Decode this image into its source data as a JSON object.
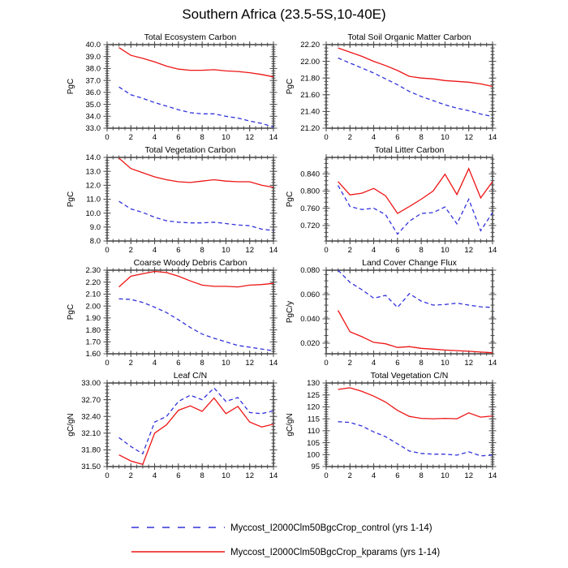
{
  "page": {
    "title": "Southern Africa (23.5-5S,10-40E)"
  },
  "colors": {
    "control": "#3232dc",
    "kparams": "#ee1414",
    "frame": "#4d4d4d"
  },
  "legend": {
    "items": [
      {
        "name": "control",
        "label": "Myccost_I2000Clm50BgcCrop_control (yrs 1-14)",
        "color": "#3232dc",
        "style": "dashed"
      },
      {
        "name": "kparams",
        "label": "Myccost_I2000Clm50BgcCrop_kparams (yrs 1-14)",
        "color": "#ee1414",
        "style": "solid"
      }
    ]
  },
  "chart_data": [
    {
      "type": "line",
      "title": "Total Ecosystem Carbon",
      "ylabel": "PgC",
      "x": [
        1,
        2,
        3,
        4,
        5,
        6,
        7,
        8,
        9,
        10,
        11,
        12,
        13,
        14
      ],
      "xlim": [
        0,
        14
      ],
      "xticks": [
        0,
        2,
        4,
        6,
        8,
        10,
        12,
        14
      ],
      "x_minor_step": 0.5,
      "ylim": [
        33.0,
        40.0
      ],
      "ytick_vals": [
        33,
        34,
        35,
        36,
        37,
        38,
        39,
        40
      ],
      "ytick_labels": [
        "33.0",
        "34.0",
        "35.0",
        "36.0",
        "37.0",
        "38.0",
        "39.0",
        "40.0"
      ],
      "y_minor_step": 0.2,
      "series": [
        {
          "name": "control",
          "dashed": true,
          "values": [
            36.45,
            35.8,
            35.5,
            35.15,
            34.85,
            34.55,
            34.3,
            34.2,
            34.2,
            34.0,
            33.85,
            33.6,
            33.4,
            33.1
          ]
        },
        {
          "name": "kparams",
          "dashed": false,
          "values": [
            39.75,
            39.1,
            38.85,
            38.55,
            38.2,
            37.95,
            37.85,
            37.85,
            37.9,
            37.8,
            37.75,
            37.65,
            37.5,
            37.3
          ]
        }
      ]
    },
    {
      "type": "line",
      "title": "Total Soil Organic Matter Carbon",
      "ylabel": "PgC",
      "x": [
        1,
        2,
        3,
        4,
        5,
        6,
        7,
        8,
        9,
        10,
        11,
        12,
        13,
        14
      ],
      "xlim": [
        0,
        14
      ],
      "xticks": [
        0,
        2,
        4,
        6,
        8,
        10,
        12,
        14
      ],
      "x_minor_step": 0.5,
      "ylim": [
        21.2,
        22.2
      ],
      "ytick_vals": [
        21.2,
        21.4,
        21.6,
        21.8,
        22.0,
        22.2
      ],
      "ytick_labels": [
        "21.20",
        "21.40",
        "21.60",
        "21.80",
        "22.00",
        "22.20"
      ],
      "y_minor_step": 0.04,
      "series": [
        {
          "name": "control",
          "dashed": true,
          "values": [
            22.04,
            21.98,
            21.92,
            21.86,
            21.79,
            21.72,
            21.64,
            21.58,
            21.53,
            21.48,
            21.44,
            21.41,
            21.37,
            21.34
          ]
        },
        {
          "name": "kparams",
          "dashed": false,
          "values": [
            22.16,
            22.11,
            22.06,
            22.0,
            21.95,
            21.89,
            21.82,
            21.8,
            21.79,
            21.77,
            21.76,
            21.75,
            21.73,
            21.7
          ]
        }
      ]
    },
    {
      "type": "line",
      "title": "Total Vegetation Carbon",
      "ylabel": "PgC",
      "x": [
        1,
        2,
        3,
        4,
        5,
        6,
        7,
        8,
        9,
        10,
        11,
        12,
        13,
        14
      ],
      "xlim": [
        0,
        14
      ],
      "xticks": [
        0,
        2,
        4,
        6,
        8,
        10,
        12,
        14
      ],
      "x_minor_step": 0.5,
      "ylim": [
        8.0,
        14.0
      ],
      "ytick_vals": [
        8,
        9,
        10,
        11,
        12,
        13,
        14
      ],
      "ytick_labels": [
        "8.0",
        "9.0",
        "10.0",
        "11.0",
        "12.0",
        "13.0",
        "14.0"
      ],
      "y_minor_step": 0.2,
      "series": [
        {
          "name": "control",
          "dashed": true,
          "values": [
            10.85,
            10.3,
            10.05,
            9.7,
            9.45,
            9.35,
            9.3,
            9.3,
            9.35,
            9.25,
            9.15,
            9.1,
            8.85,
            8.75
          ]
        },
        {
          "name": "kparams",
          "dashed": false,
          "values": [
            13.95,
            13.2,
            12.9,
            12.6,
            12.4,
            12.25,
            12.2,
            12.3,
            12.4,
            12.3,
            12.25,
            12.25,
            12.0,
            11.85
          ]
        }
      ]
    },
    {
      "type": "line",
      "title": "Total Litter Carbon",
      "ylabel": "PgC",
      "x": [
        1,
        2,
        3,
        4,
        5,
        6,
        7,
        8,
        9,
        10,
        11,
        12,
        13,
        14
      ],
      "xlim": [
        0,
        14
      ],
      "xticks": [
        0,
        2,
        4,
        6,
        8,
        10,
        12,
        14
      ],
      "x_minor_step": 0.5,
      "ylim": [
        0.684,
        0.878
      ],
      "ytick_vals": [
        0.72,
        0.76,
        0.8,
        0.84
      ],
      "ytick_labels": [
        "0.720",
        "0.760",
        "0.800",
        "0.840"
      ],
      "y_minor_step": 0.01,
      "series": [
        {
          "name": "control",
          "dashed": true,
          "values": [
            0.813,
            0.764,
            0.757,
            0.76,
            0.745,
            0.7,
            0.73,
            0.748,
            0.75,
            0.763,
            0.724,
            0.781,
            0.708,
            0.75
          ]
        },
        {
          "name": "kparams",
          "dashed": false,
          "values": [
            0.822,
            0.791,
            0.795,
            0.806,
            0.789,
            0.748,
            0.764,
            0.781,
            0.8,
            0.839,
            0.792,
            0.852,
            0.784,
            0.822
          ]
        }
      ]
    },
    {
      "type": "line",
      "title": "Coarse Woody Debris Carbon",
      "ylabel": "PgC",
      "x": [
        1,
        2,
        3,
        4,
        5,
        6,
        7,
        8,
        9,
        10,
        11,
        12,
        13,
        14
      ],
      "xlim": [
        0,
        14
      ],
      "xticks": [
        0,
        2,
        4,
        6,
        8,
        10,
        12,
        14
      ],
      "x_minor_step": 0.5,
      "ylim": [
        1.6,
        2.3
      ],
      "ytick_vals": [
        1.6,
        1.7,
        1.8,
        1.9,
        2.0,
        2.1,
        2.2,
        2.3
      ],
      "ytick_labels": [
        "1.60",
        "1.70",
        "1.80",
        "1.90",
        "2.00",
        "2.10",
        "2.20",
        "2.30"
      ],
      "y_minor_step": 0.02,
      "series": [
        {
          "name": "control",
          "dashed": true,
          "values": [
            2.06,
            2.055,
            2.03,
            1.99,
            1.945,
            1.885,
            1.82,
            1.765,
            1.73,
            1.7,
            1.67,
            1.655,
            1.64,
            1.625
          ]
        },
        {
          "name": "kparams",
          "dashed": false,
          "values": [
            2.16,
            2.25,
            2.27,
            2.29,
            2.28,
            2.25,
            2.21,
            2.175,
            2.165,
            2.165,
            2.16,
            2.175,
            2.18,
            2.19
          ]
        }
      ]
    },
    {
      "type": "line",
      "title": "Land Cover Change Flux",
      "ylabel": "PgC/y",
      "x": [
        1,
        2,
        3,
        4,
        5,
        6,
        7,
        8,
        9,
        10,
        11,
        12,
        13,
        14
      ],
      "xlim": [
        0,
        14
      ],
      "xticks": [
        0,
        2,
        4,
        6,
        8,
        10,
        12,
        14
      ],
      "x_minor_step": 0.5,
      "ylim": [
        0.0113,
        0.08
      ],
      "ytick_vals": [
        0.02,
        0.04,
        0.06,
        0.08
      ],
      "ytick_labels": [
        "0.020",
        "0.040",
        "0.060",
        "0.080"
      ],
      "y_minor_step": 0.005,
      "series": [
        {
          "name": "control",
          "dashed": true,
          "values": [
            0.08,
            0.07,
            0.064,
            0.057,
            0.0593,
            0.0494,
            0.0607,
            0.0546,
            0.0513,
            0.0518,
            0.0529,
            0.0513,
            0.0499,
            0.0494
          ]
        },
        {
          "name": "kparams",
          "dashed": false,
          "values": [
            0.047,
            0.0294,
            0.0254,
            0.0207,
            0.0195,
            0.0165,
            0.0172,
            0.0158,
            0.0151,
            0.0144,
            0.0139,
            0.0134,
            0.0127,
            0.0122
          ]
        }
      ]
    },
    {
      "type": "line",
      "title": "Leaf C/N",
      "ylabel": "gC/gN",
      "x": [
        1,
        2,
        3,
        4,
        5,
        6,
        7,
        8,
        9,
        10,
        11,
        12,
        13,
        14
      ],
      "xlim": [
        0,
        14
      ],
      "xticks": [
        0,
        2,
        4,
        6,
        8,
        10,
        12,
        14
      ],
      "x_minor_step": 0.5,
      "ylim": [
        31.5,
        33.0
      ],
      "ytick_vals": [
        31.5,
        31.8,
        32.1,
        32.4,
        32.7,
        33.0
      ],
      "ytick_labels": [
        "31.50",
        "31.80",
        "32.10",
        "32.40",
        "32.70",
        "33.00"
      ],
      "y_minor_step": 0.06,
      "series": [
        {
          "name": "control",
          "dashed": true,
          "values": [
            32.02,
            31.86,
            31.73,
            32.3,
            32.4,
            32.67,
            32.78,
            32.7,
            32.91,
            32.67,
            32.74,
            32.47,
            32.45,
            32.5
          ]
        },
        {
          "name": "kparams",
          "dashed": false,
          "values": [
            31.71,
            31.6,
            31.54,
            32.1,
            32.25,
            32.51,
            32.59,
            32.49,
            32.73,
            32.45,
            32.58,
            32.3,
            32.21,
            32.26
          ]
        }
      ]
    },
    {
      "type": "line",
      "title": "Total Vegetation C/N",
      "ylabel": "gC/gN",
      "x": [
        1,
        2,
        3,
        4,
        5,
        6,
        7,
        8,
        9,
        10,
        11,
        12,
        13,
        14
      ],
      "xlim": [
        0,
        14
      ],
      "xticks": [
        0,
        2,
        4,
        6,
        8,
        10,
        12,
        14
      ],
      "x_minor_step": 0.5,
      "ylim": [
        95,
        130
      ],
      "ytick_vals": [
        95,
        100,
        105,
        110,
        115,
        120,
        125,
        130
      ],
      "ytick_labels": [
        "95",
        "100",
        "105",
        "110",
        "115",
        "120",
        "125",
        "130"
      ],
      "y_minor_step": 1,
      "series": [
        {
          "name": "control",
          "dashed": true,
          "values": [
            113.8,
            113.5,
            112.0,
            109.5,
            107.5,
            104.5,
            101.5,
            100.5,
            100.2,
            100.2,
            99.8,
            101.2,
            99.5,
            99.8
          ]
        },
        {
          "name": "kparams",
          "dashed": false,
          "values": [
            127.3,
            128.0,
            126.5,
            124.5,
            122.0,
            118.5,
            116.0,
            115.2,
            115.0,
            115.2,
            115.0,
            117.5,
            115.7,
            116.2
          ]
        }
      ]
    }
  ]
}
